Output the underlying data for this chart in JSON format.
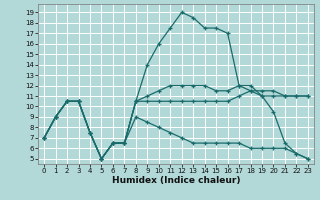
{
  "xlabel": "Humidex (Indice chaleur)",
  "bg_color": "#b2d8d8",
  "grid_color": "#ffffff",
  "line_color": "#1a6b6b",
  "xlim": [
    -0.5,
    23.5
  ],
  "ylim": [
    4.5,
    19.8
  ],
  "yticks": [
    5,
    6,
    7,
    8,
    9,
    10,
    11,
    12,
    13,
    14,
    15,
    16,
    17,
    18,
    19
  ],
  "xticks": [
    0,
    1,
    2,
    3,
    4,
    5,
    6,
    7,
    8,
    9,
    10,
    11,
    12,
    13,
    14,
    15,
    16,
    17,
    18,
    19,
    20,
    21,
    22,
    23
  ],
  "lines": [
    {
      "x": [
        0,
        1,
        2,
        3,
        4,
        5,
        6,
        7,
        8,
        9,
        10,
        11,
        12,
        13,
        14,
        15,
        16,
        17,
        18,
        19,
        20,
        21,
        22,
        23
      ],
      "y": [
        7,
        9,
        10.5,
        10.5,
        7.5,
        5.0,
        6.5,
        6.5,
        10.5,
        10.5,
        10.5,
        10.5,
        10.5,
        10.5,
        10.5,
        10.5,
        10.5,
        11.0,
        11.5,
        11.5,
        11.5,
        11.0,
        11.0,
        11.0
      ]
    },
    {
      "x": [
        0,
        1,
        2,
        3,
        4,
        5,
        6,
        7,
        8,
        9,
        10,
        11,
        12,
        13,
        14,
        15,
        16,
        17,
        18,
        19,
        20,
        21,
        22,
        23
      ],
      "y": [
        7,
        9,
        10.5,
        10.5,
        7.5,
        5.0,
        6.5,
        6.5,
        10.5,
        14,
        16,
        17.5,
        19.0,
        18.5,
        17.5,
        17.5,
        17.0,
        12.0,
        11.5,
        11.0,
        9.5,
        6.5,
        5.5,
        5.0
      ]
    },
    {
      "x": [
        0,
        1,
        2,
        3,
        4,
        5,
        6,
        7,
        8,
        9,
        10,
        11,
        12,
        13,
        14,
        15,
        16,
        17,
        18,
        19,
        20,
        21,
        22,
        23
      ],
      "y": [
        7,
        9,
        10.5,
        10.5,
        7.5,
        5.0,
        6.5,
        6.5,
        9.0,
        8.5,
        8.0,
        7.5,
        7.0,
        6.5,
        6.5,
        6.5,
        6.5,
        6.5,
        6.0,
        6.0,
        6.0,
        6.0,
        5.5,
        5.0
      ]
    },
    {
      "x": [
        0,
        1,
        2,
        3,
        4,
        5,
        6,
        7,
        8,
        9,
        10,
        11,
        12,
        13,
        14,
        15,
        16,
        17,
        18,
        19,
        20,
        21,
        22,
        23
      ],
      "y": [
        7,
        9,
        10.5,
        10.5,
        7.5,
        5.0,
        6.5,
        6.5,
        10.5,
        11.0,
        11.5,
        12.0,
        12.0,
        12.0,
        12.0,
        11.5,
        11.5,
        12.0,
        12.0,
        11.0,
        11.0,
        11.0,
        11.0,
        11.0
      ]
    }
  ]
}
